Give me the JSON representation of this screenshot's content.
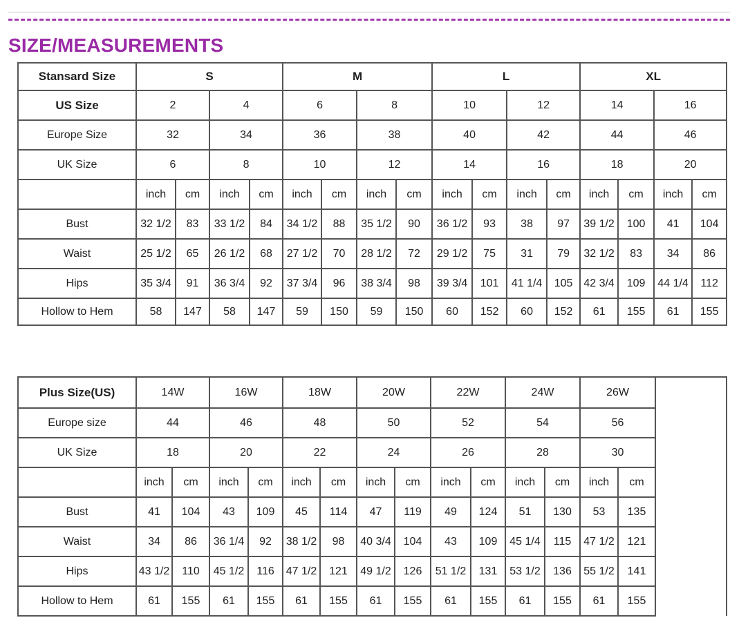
{
  "title": "SIZE/MEASUREMENTS",
  "colors": {
    "title": "#9a2aa6",
    "border": "#555555"
  },
  "standard": {
    "header_label": "Stansard Size",
    "groups": [
      "S",
      "M",
      "L",
      "XL"
    ],
    "size_rows": [
      {
        "label": "US Size",
        "values": [
          "2",
          "4",
          "6",
          "8",
          "10",
          "12",
          "14",
          "16"
        ]
      },
      {
        "label": "Europe Size",
        "values": [
          "32",
          "34",
          "36",
          "38",
          "40",
          "42",
          "44",
          "46"
        ]
      },
      {
        "label": "UK Size",
        "values": [
          "6",
          "8",
          "10",
          "12",
          "14",
          "16",
          "18",
          "20"
        ]
      }
    ],
    "units": [
      "inch",
      "cm"
    ],
    "measure_rows": [
      {
        "label": "Bust",
        "values": [
          "32 1/2",
          "83",
          "33 1/2",
          "84",
          "34 1/2",
          "88",
          "35 1/2",
          "90",
          "36 1/2",
          "93",
          "38",
          "97",
          "39 1/2",
          "100",
          "41",
          "104"
        ]
      },
      {
        "label": "Waist",
        "values": [
          "25 1/2",
          "65",
          "26 1/2",
          "68",
          "27 1/2",
          "70",
          "28 1/2",
          "72",
          "29 1/2",
          "75",
          "31",
          "79",
          "32 1/2",
          "83",
          "34",
          "86"
        ]
      },
      {
        "label": "Hips",
        "values": [
          "35 3/4",
          "91",
          "36 3/4",
          "92",
          "37 3/4",
          "96",
          "38 3/4",
          "98",
          "39 3/4",
          "101",
          "41 1/4",
          "105",
          "42 3/4",
          "109",
          "44 1/4",
          "112"
        ]
      },
      {
        "label": "Hollow to Hem",
        "values": [
          "58",
          "147",
          "58",
          "147",
          "59",
          "150",
          "59",
          "150",
          "60",
          "152",
          "60",
          "152",
          "61",
          "155",
          "61",
          "155"
        ]
      }
    ]
  },
  "plus": {
    "header_label": "Plus Size(US)",
    "groups": [
      "14W",
      "16W",
      "18W",
      "20W",
      "22W",
      "24W",
      "26W"
    ],
    "size_rows": [
      {
        "label": "Europe size",
        "values": [
          "44",
          "46",
          "48",
          "50",
          "52",
          "54",
          "56"
        ]
      },
      {
        "label": "UK Size",
        "values": [
          "18",
          "20",
          "22",
          "24",
          "26",
          "28",
          "30"
        ]
      }
    ],
    "units": [
      "inch",
      "cm"
    ],
    "measure_rows": [
      {
        "label": "Bust",
        "values": [
          "41",
          "104",
          "43",
          "109",
          "45",
          "114",
          "47",
          "119",
          "49",
          "124",
          "51",
          "130",
          "53",
          "135"
        ]
      },
      {
        "label": "Waist",
        "values": [
          "34",
          "86",
          "36 1/4",
          "92",
          "38 1/2",
          "98",
          "40 3/4",
          "104",
          "43",
          "109",
          "45 1/4",
          "115",
          "47 1/2",
          "121"
        ]
      },
      {
        "label": "Hips",
        "values": [
          "43 1/2",
          "110",
          "45 1/2",
          "116",
          "47 1/2",
          "121",
          "49 1/2",
          "126",
          "51 1/2",
          "131",
          "53 1/2",
          "136",
          "55 1/2",
          "141"
        ]
      },
      {
        "label": "Hollow to Hem",
        "values": [
          "61",
          "155",
          "61",
          "155",
          "61",
          "155",
          "61",
          "155",
          "61",
          "155",
          "61",
          "155",
          "61",
          "155"
        ]
      }
    ]
  }
}
